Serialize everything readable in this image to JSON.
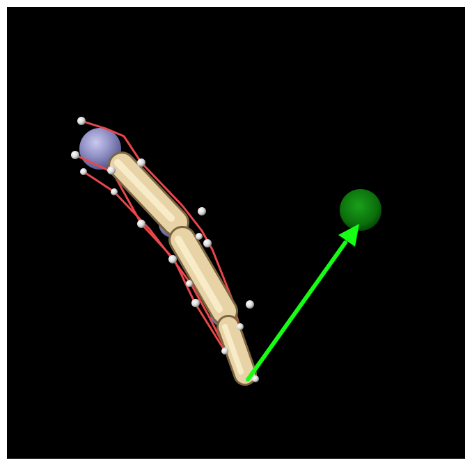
{
  "scene": {
    "background": "#000000",
    "frame_color": "#ffffff",
    "colors": {
      "capsule": "#e7d3a6",
      "capsule_shade": "#9c8359",
      "joint_sphere": "#8f8fc4",
      "tendon": "#e8474b",
      "marker": "#f2f2f2",
      "target": "#0d8a0d",
      "arrow": "#14ff14"
    },
    "objects": [
      "finger-capsule-chain",
      "joint-spheres",
      "tendon-lines",
      "site-markers",
      "target-sphere",
      "direction-arrow"
    ]
  }
}
